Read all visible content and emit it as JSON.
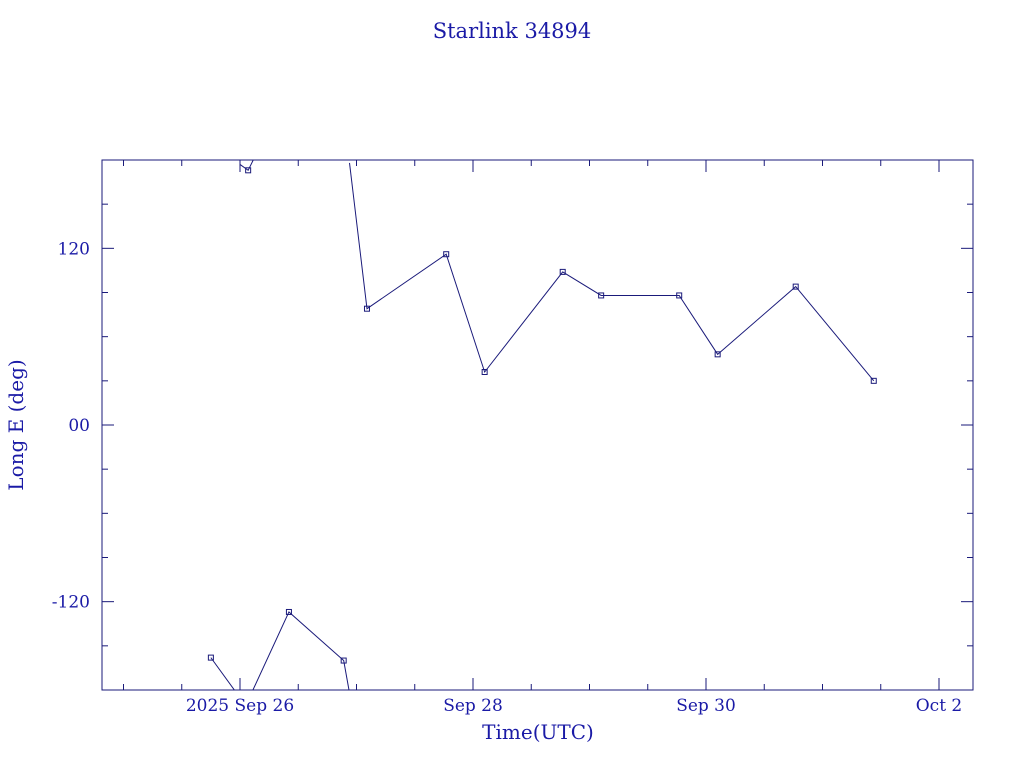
{
  "chart_data": {
    "type": "line",
    "title": "Starlink 34894",
    "xlabel": "Time(UTC)",
    "ylabel": "Long E (deg)",
    "x_ticks": [
      {
        "t": 0.0,
        "label": "2025 Sep 26"
      },
      {
        "t": 2.0,
        "label": "Sep 28"
      },
      {
        "t": 4.0,
        "label": "Sep 30"
      },
      {
        "t": 6.0,
        "label": "Oct  2"
      }
    ],
    "y_ticks": [
      {
        "v": 120,
        "label": "120"
      },
      {
        "v": 0,
        "label": "00"
      },
      {
        "v": -120,
        "label": "-120"
      }
    ],
    "xlim": [
      -1.19,
      6.35
    ],
    "ylim": [
      -180,
      180
    ],
    "wraps_at": 180,
    "series": [
      {
        "values": [
          [
            -0.25,
            -158
          ],
          [
            -0.03,
            -182
          ],
          [
            0.07,
            -187
          ],
          [
            0.42,
            -127
          ],
          [
            0.89,
            -160
          ],
          [
            0.94,
            -182
          ],
          [
            0.94,
            178
          ],
          [
            1.09,
            79
          ],
          [
            1.77,
            116
          ],
          [
            2.1,
            36
          ],
          [
            2.77,
            104
          ],
          [
            3.1,
            88
          ],
          [
            3.77,
            88
          ],
          [
            4.1,
            48
          ],
          [
            4.77,
            94
          ],
          [
            5.44,
            30
          ]
        ]
      }
    ],
    "points_before_gap": [
      [
        0.0,
        177
      ],
      [
        0.07,
        173
      ]
    ],
    "line_color": "#1a1a7a",
    "text_color": "#1a1aa6"
  }
}
